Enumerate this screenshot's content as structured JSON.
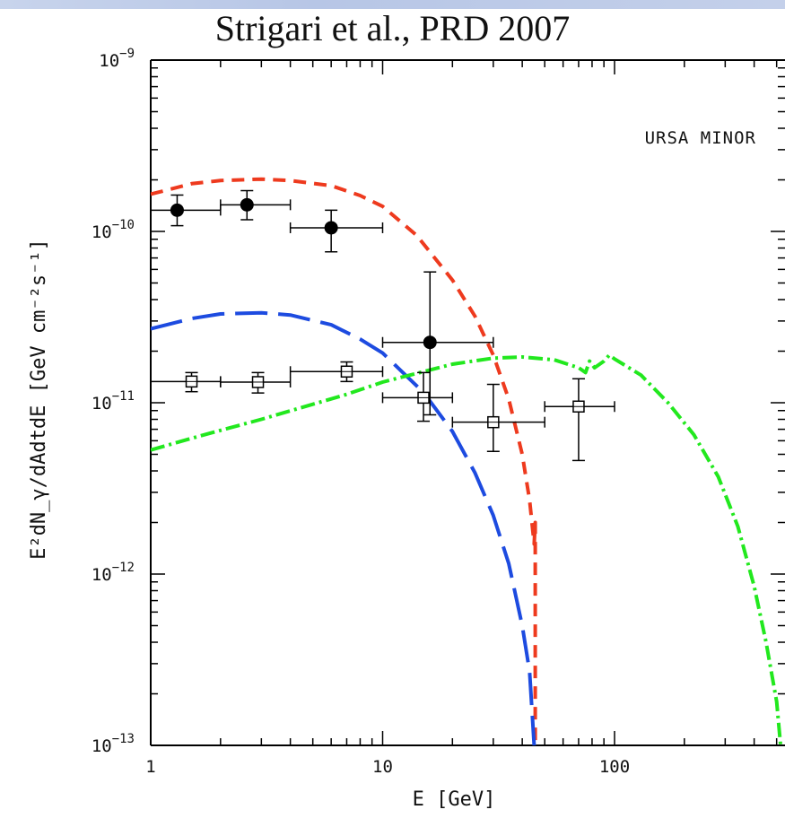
{
  "title": "Strigari et al., PRD 2007",
  "chart_data": {
    "type": "scatter",
    "title": "Strigari et al., PRD 2007",
    "xlabel": "E [GeV]",
    "ylabel": "E²dN_γ/dAdtdE [GeV cm⁻²s⁻¹]",
    "x_scale": "log",
    "y_scale": "log",
    "xlim": [
      1,
      600
    ],
    "ylim": [
      1e-13,
      1e-09
    ],
    "annotation": "URSA MINOR",
    "x_tick_labels": [
      {
        "v": 1,
        "label": "1"
      },
      {
        "v": 10,
        "label": "10"
      },
      {
        "v": 100,
        "label": "100"
      }
    ],
    "y_tick_labels": [
      {
        "v": 1e-09,
        "mant": "10",
        "exp": "−9"
      },
      {
        "v": 1e-10,
        "mant": "10",
        "exp": "−10"
      },
      {
        "v": 1e-11,
        "mant": "10",
        "exp": "−11"
      },
      {
        "v": 1e-12,
        "mant": "10",
        "exp": "−12"
      },
      {
        "v": 1e-13,
        "mant": "10",
        "exp": "−13"
      }
    ],
    "points": [
      {
        "marker": "filled-circle",
        "data": [
          {
            "x": 1.3,
            "y": 1.33e-10,
            "xlo": 1.0,
            "xhi": 2.0,
            "ylo": 1.08e-10,
            "yhi": 1.63e-10
          },
          {
            "x": 2.6,
            "y": 1.43e-10,
            "xlo": 2.0,
            "xhi": 4.0,
            "ylo": 1.17e-10,
            "yhi": 1.73e-10
          },
          {
            "x": 6.0,
            "y": 1.05e-10,
            "xlo": 4.0,
            "xhi": 10.0,
            "ylo": 7.6e-11,
            "yhi": 1.33e-10
          },
          {
            "x": 16.0,
            "y": 2.25e-11,
            "xlo": 10.0,
            "xhi": 30.0,
            "ylo": 8.5e-12,
            "yhi": 5.8e-11
          }
        ]
      },
      {
        "marker": "open-square",
        "data": [
          {
            "x": 1.5,
            "y": 1.33e-11,
            "xlo": 1.0,
            "xhi": 2.0,
            "ylo": 1.16e-11,
            "yhi": 1.5e-11
          },
          {
            "x": 2.9,
            "y": 1.32e-11,
            "xlo": 2.0,
            "xhi": 4.0,
            "ylo": 1.14e-11,
            "yhi": 1.5e-11
          },
          {
            "x": 7.0,
            "y": 1.52e-11,
            "xlo": 4.0,
            "xhi": 10.0,
            "ylo": 1.33e-11,
            "yhi": 1.73e-11
          },
          {
            "x": 15.0,
            "y": 1.07e-11,
            "xlo": 10.0,
            "xhi": 20.0,
            "ylo": 7.8e-12,
            "yhi": 1.5e-11
          },
          {
            "x": 30.0,
            "y": 7.7e-12,
            "xlo": 20.0,
            "xhi": 50.0,
            "ylo": 5.2e-12,
            "yhi": 1.28e-11
          },
          {
            "x": 70.0,
            "y": 9.5e-12,
            "xlo": 50.0,
            "xhi": 100.0,
            "ylo": 4.6e-12,
            "yhi": 1.38e-11
          }
        ]
      }
    ],
    "curves": [
      {
        "color": "#ee3a1e",
        "dash": "14 9",
        "points": [
          [
            1.0,
            1.65e-10
          ],
          [
            1.5,
            1.9e-10
          ],
          [
            2.0,
            1.98e-10
          ],
          [
            3.0,
            2.02e-10
          ],
          [
            4.0,
            1.98e-10
          ],
          [
            6.0,
            1.85e-10
          ],
          [
            8.0,
            1.62e-10
          ],
          [
            10.0,
            1.4e-10
          ],
          [
            14.0,
            9.5e-11
          ],
          [
            20.0,
            5.2e-11
          ],
          [
            25.0,
            3.2e-11
          ],
          [
            30.0,
            1.9e-11
          ],
          [
            35.0,
            1.05e-11
          ],
          [
            40.0,
            5e-12
          ],
          [
            43.0,
            2.7e-12
          ],
          [
            45.0,
            1.5e-12
          ],
          [
            45.5,
            2e-12
          ],
          [
            45.5,
            1e-13
          ]
        ]
      },
      {
        "color": "#1d4be0",
        "dash": "36 12",
        "points": [
          [
            1.0,
            2.7e-11
          ],
          [
            1.5,
            3.1e-11
          ],
          [
            2.0,
            3.3e-11
          ],
          [
            3.0,
            3.35e-11
          ],
          [
            4.0,
            3.25e-11
          ],
          [
            6.0,
            2.85e-11
          ],
          [
            8.0,
            2.35e-11
          ],
          [
            10.0,
            1.95e-11
          ],
          [
            15.0,
            1.15e-11
          ],
          [
            20.0,
            6.8e-12
          ],
          [
            25.0,
            3.9e-12
          ],
          [
            30.0,
            2.2e-12
          ],
          [
            35.0,
            1.15e-12
          ],
          [
            40.0,
            5e-13
          ],
          [
            43.0,
            2.7e-13
          ],
          [
            45.0,
            1e-13
          ]
        ]
      },
      {
        "color": "#22e81e",
        "dash": "16 5 3 5",
        "points": [
          [
            1.0,
            5.3e-12
          ],
          [
            1.5,
            6.2e-12
          ],
          [
            2.0,
            6.9e-12
          ],
          [
            3.0,
            8e-12
          ],
          [
            5.0,
            9.8e-12
          ],
          [
            7.0,
            1.12e-11
          ],
          [
            10.0,
            1.32e-11
          ],
          [
            15.0,
            1.52e-11
          ],
          [
            20.0,
            1.68e-11
          ],
          [
            30.0,
            1.82e-11
          ],
          [
            40.0,
            1.85e-11
          ],
          [
            55.0,
            1.78e-11
          ],
          [
            70.0,
            1.6e-11
          ],
          [
            75.0,
            1.5e-11
          ],
          [
            78.0,
            1.75e-11
          ],
          [
            82.0,
            1.6e-11
          ],
          [
            90.0,
            1.75e-11
          ],
          [
            95.0,
            1.9e-11
          ],
          [
            100.0,
            1.8e-11
          ],
          [
            130.0,
            1.45e-11
          ],
          [
            170.0,
            1e-11
          ],
          [
            220.0,
            6.5e-12
          ],
          [
            280.0,
            3.7e-12
          ],
          [
            340.0,
            1.9e-12
          ],
          [
            400.0,
            8.5e-13
          ],
          [
            450.0,
            4e-13
          ],
          [
            500.0,
            1.8e-13
          ],
          [
            520.0,
            1e-13
          ]
        ]
      }
    ]
  }
}
